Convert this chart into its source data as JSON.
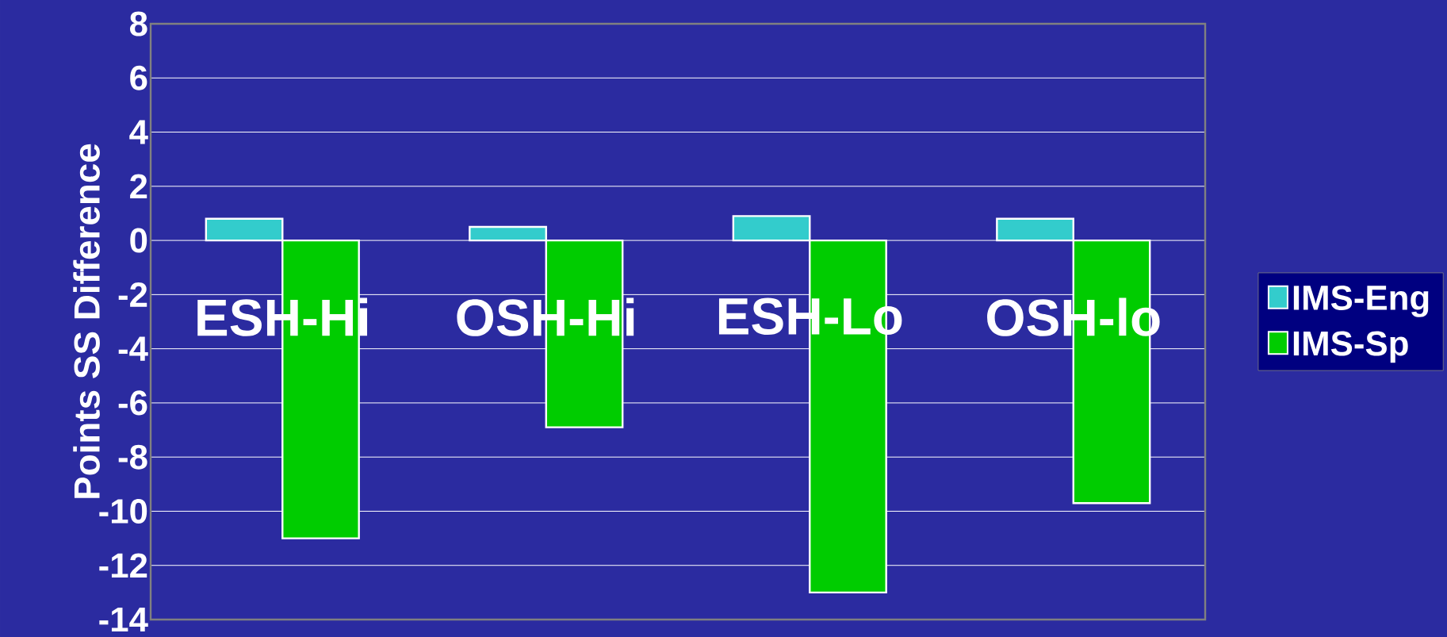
{
  "chart_data": {
    "type": "bar",
    "ylabel": "Points SS Difference",
    "categories": [
      "ESH-Hi",
      "OSH-Hi",
      "ESH-Lo",
      "OSH-lo"
    ],
    "series": [
      {
        "name": "IMS-Eng",
        "color": "#33cccc",
        "values": [
          0.8,
          0.5,
          0.9,
          0.8
        ]
      },
      {
        "name": "IMS-Sp",
        "color": "#00cc00",
        "values": [
          -11,
          -6.9,
          -13,
          -9.7
        ]
      }
    ],
    "ylim": [
      -14,
      8
    ],
    "yticks": [
      -14,
      -12,
      -10,
      -8,
      -6,
      -4,
      -2,
      0,
      2,
      4,
      6,
      8
    ],
    "grid": "y",
    "legend": "right"
  }
}
